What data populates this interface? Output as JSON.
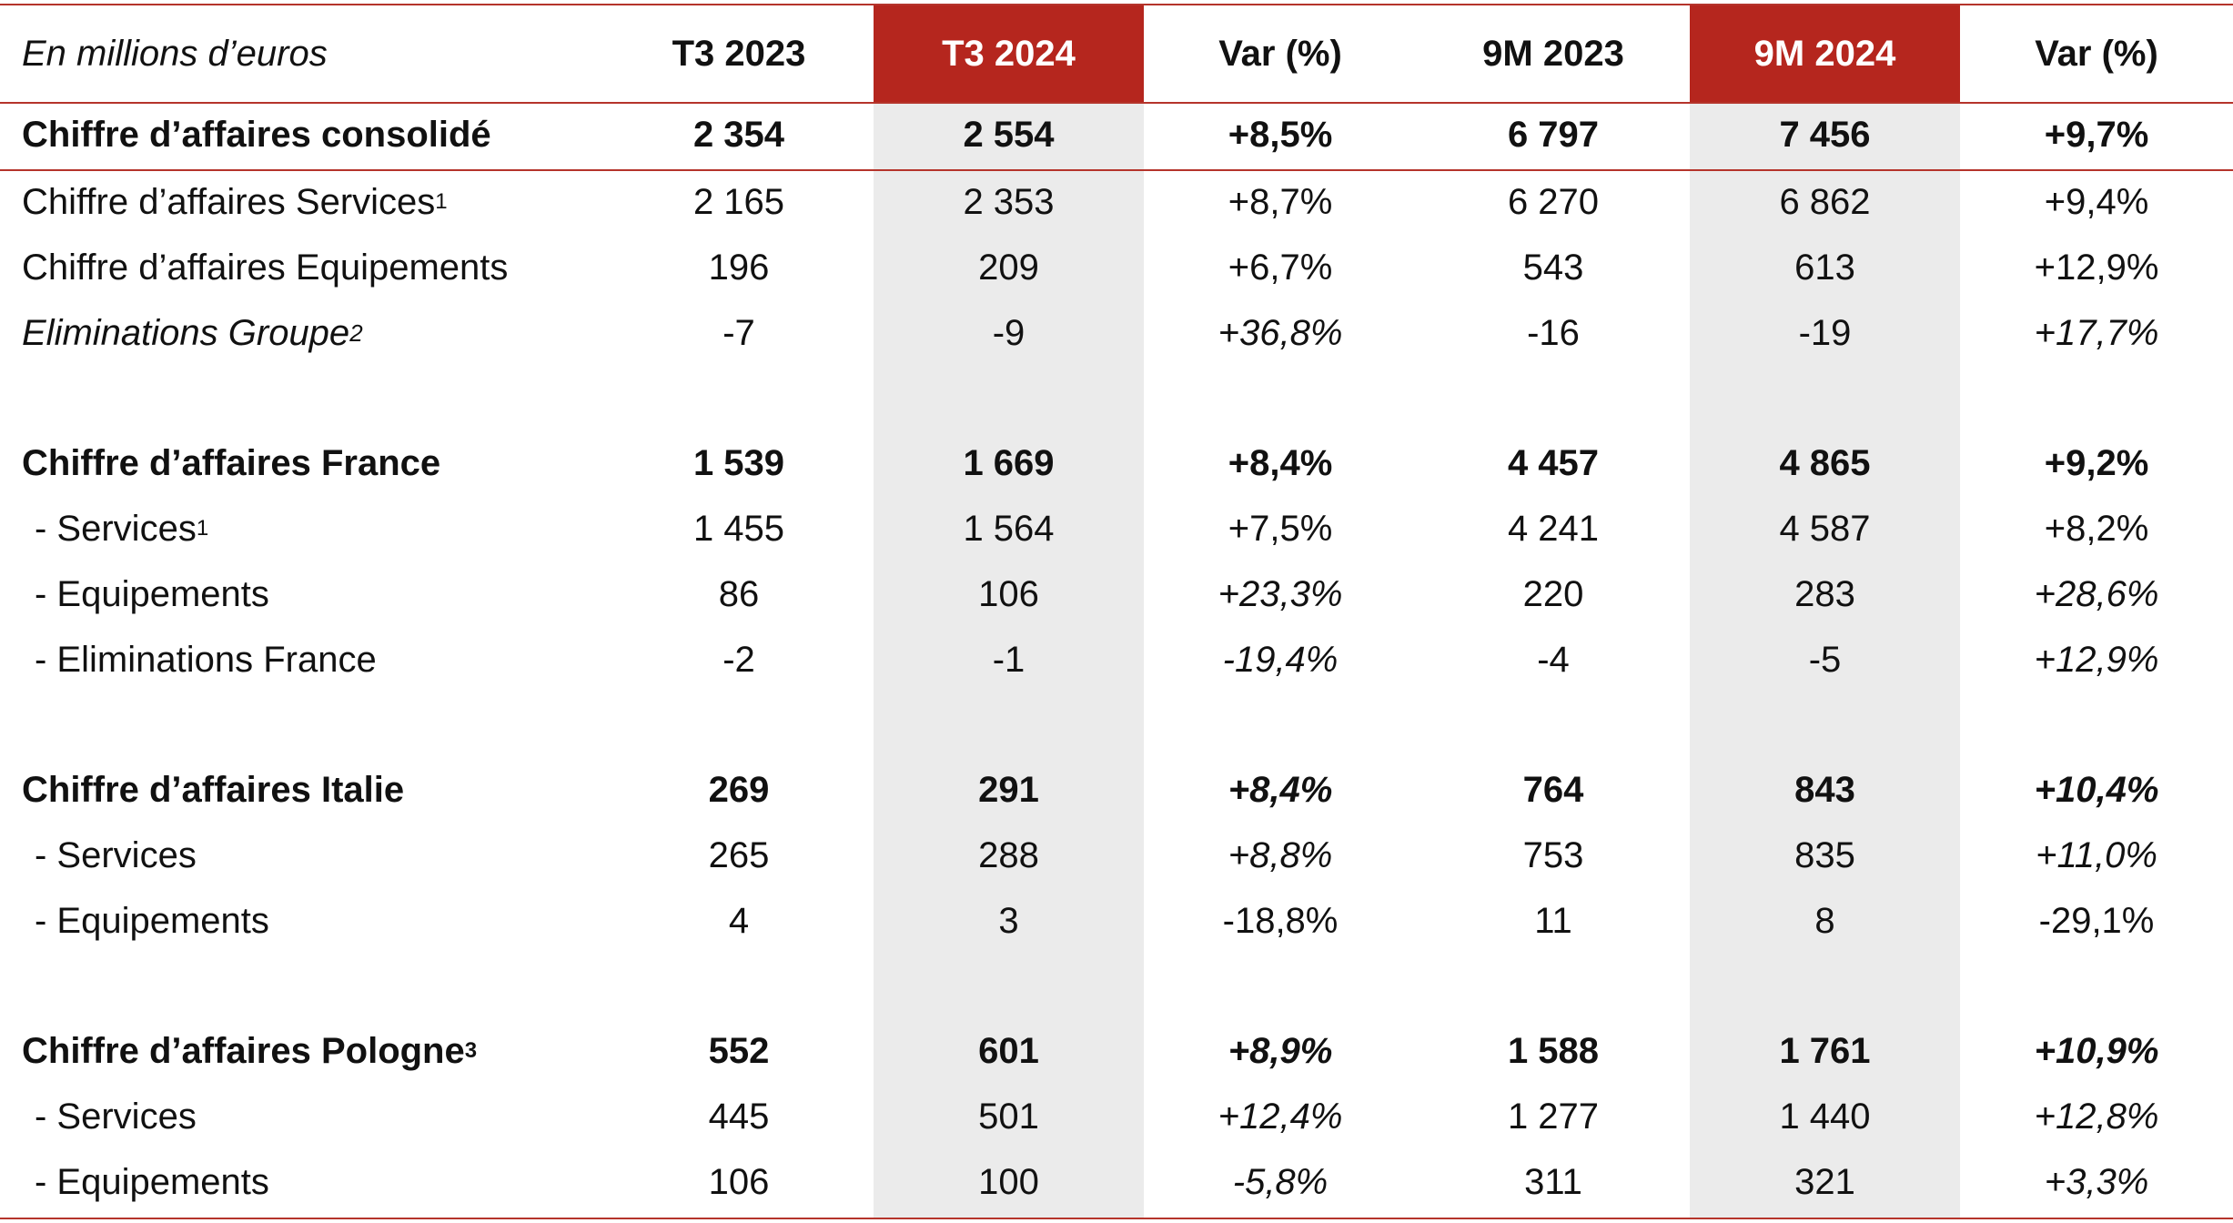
{
  "header": {
    "unit_label": "En millions d’euros",
    "columns": [
      "T3 2023",
      "T3 2024",
      "Var (%)",
      "9M 2023",
      "9M 2024",
      "Var (%)"
    ]
  },
  "colors": {
    "accent": "#b5261e",
    "highlight_band": "#ebebeb",
    "rule": "#b5342b"
  },
  "rows": [
    {
      "label": "Chiffre d’affaires consolidé",
      "sup": "",
      "values": [
        "2 354",
        "2 554",
        "+8,5%",
        "6 797",
        "7 456",
        "+9,7%"
      ]
    },
    {
      "label": "Chiffre d’affaires Services",
      "sup": "1",
      "values": [
        "2 165",
        "2 353",
        "+8,7%",
        "6 270",
        "6 862",
        "+9,4%"
      ]
    },
    {
      "label": "Chiffre d’affaires Equipements",
      "sup": "",
      "values": [
        "196",
        "209",
        "+6,7%",
        "543",
        "613",
        "+12,9%"
      ]
    },
    {
      "label": "Eliminations Groupe",
      "sup": "2",
      "values": [
        "-7",
        "-9",
        "+36,8%",
        "-16",
        "-19",
        "+17,7%"
      ]
    },
    {
      "label": "Chiffre d’affaires France",
      "sup": "",
      "values": [
        "1 539",
        "1 669",
        "+8,4%",
        "4 457",
        "4 865",
        "+9,2%"
      ]
    },
    {
      "label": "- Services",
      "sup": "1",
      "values": [
        "1 455",
        "1 564",
        "+7,5%",
        "4 241",
        "4 587",
        "+8,2%"
      ]
    },
    {
      "label": "- Equipements",
      "sup": "",
      "values": [
        "86",
        "106",
        "+23,3%",
        "220",
        "283",
        "+28,6%"
      ]
    },
    {
      "label": "- Eliminations France",
      "sup": "",
      "values": [
        "-2",
        "-1",
        "-19,4%",
        "-4",
        "-5",
        "+12,9%"
      ]
    },
    {
      "label": "Chiffre d’affaires Italie",
      "sup": "",
      "values": [
        "269",
        "291",
        "+8,4%",
        "764",
        "843",
        "+10,4%"
      ]
    },
    {
      "label": "- Services",
      "sup": "",
      "values": [
        "265",
        "288",
        "+8,8%",
        "753",
        "835",
        "+11,0%"
      ]
    },
    {
      "label": "- Equipements",
      "sup": "",
      "values": [
        "4",
        "3",
        "-18,8%",
        "11",
        "8",
        "-29,1%"
      ]
    },
    {
      "label": "Chiffre d’affaires Pologne",
      "sup": "3",
      "values": [
        "552",
        "601",
        "+8,9%",
        "1 588",
        "1 761",
        "+10,9%"
      ]
    },
    {
      "label": "- Services",
      "sup": "",
      "values": [
        "445",
        "501",
        "+12,4%",
        "1 277",
        "1 440",
        "+12,8%"
      ]
    },
    {
      "label": "- Equipements",
      "sup": "",
      "values": [
        "106",
        "100",
        "-5,8%",
        "311",
        "321",
        "+3,3%"
      ]
    }
  ]
}
